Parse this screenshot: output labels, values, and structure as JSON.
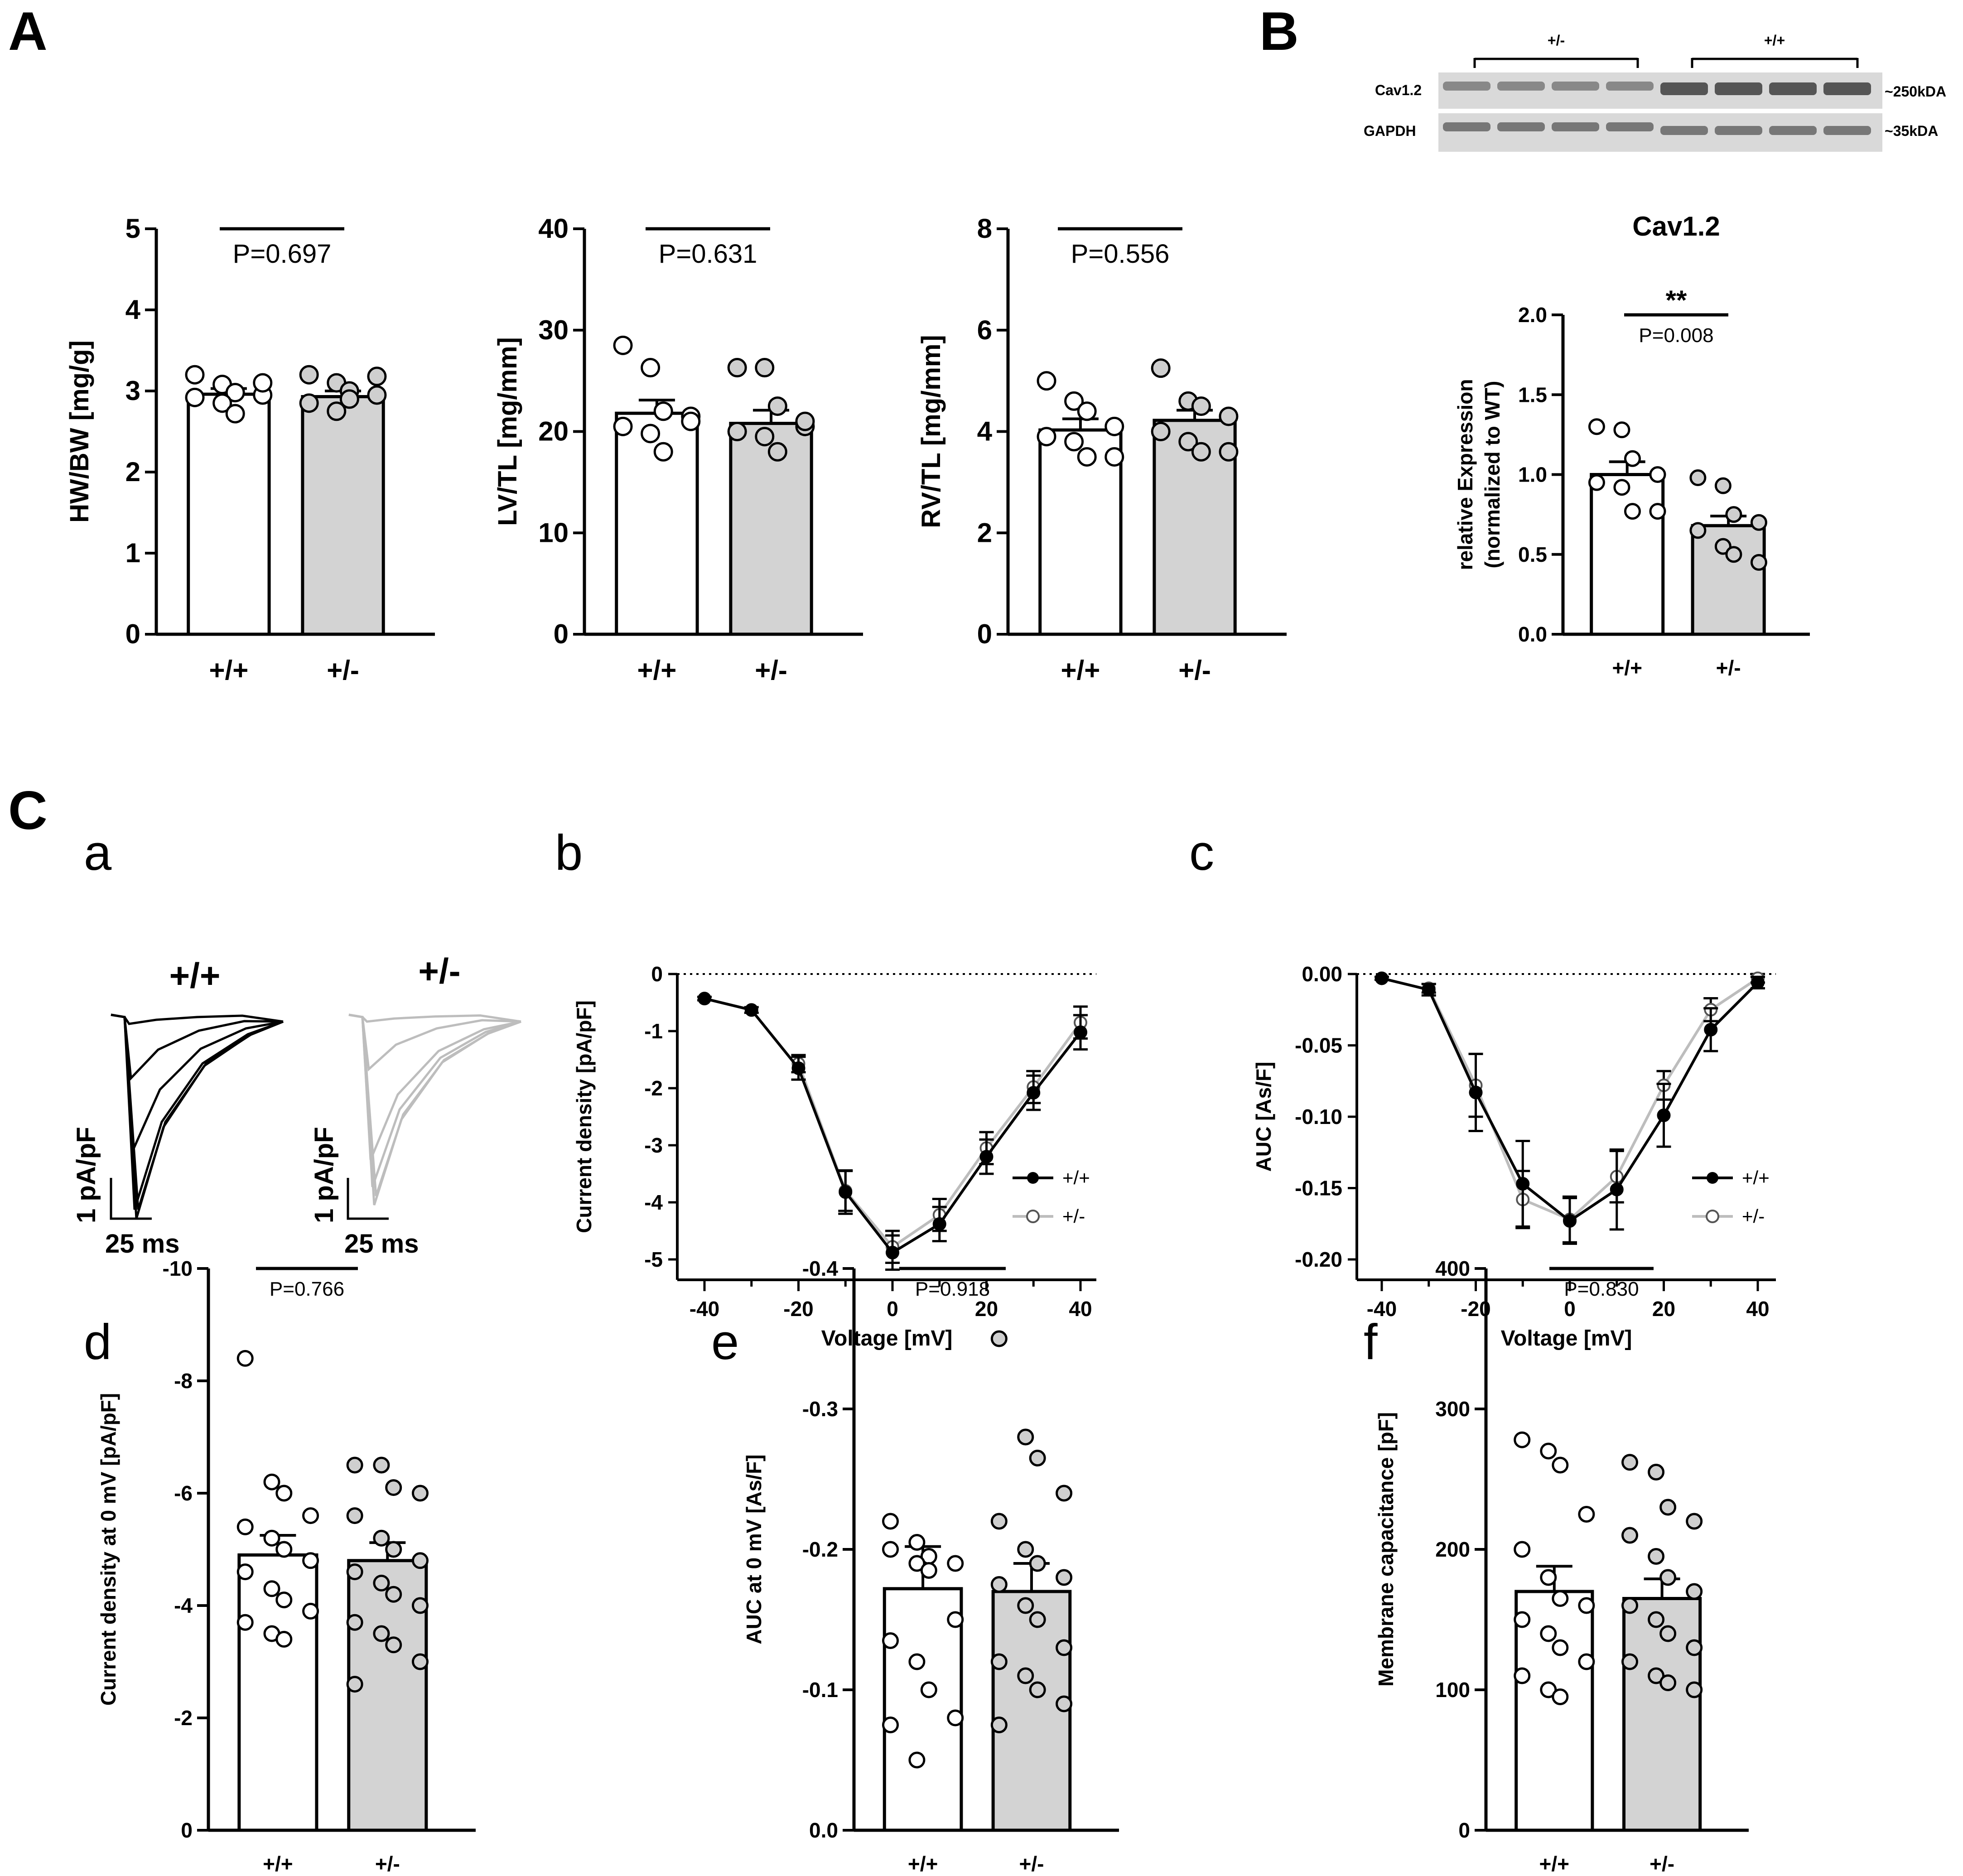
{
  "colors": {
    "wt": "#ffffff",
    "het": "#d3d3d3",
    "black": "#000000",
    "grey": "#bdbdbd"
  },
  "panels": {
    "A": "A",
    "B": "B",
    "C": "C",
    "a": "a",
    "b": "b",
    "c": "c",
    "d": "d",
    "e": "e",
    "f": "f"
  },
  "blot": {
    "groups": [
      "+/-",
      "+/+"
    ],
    "rows": [
      "Cav1.2",
      "GAPDH"
    ],
    "sizes": [
      "~250kDA",
      "~35kDA"
    ]
  },
  "traces": {
    "wt_label": "+/+",
    "het_label": "+/-",
    "scale_y": "1 pA/pF",
    "scale_x": "25 ms"
  },
  "chart_data": [
    {
      "id": "A1",
      "type": "bar",
      "title": "",
      "ylabel": "HW/BW [mg/g]",
      "ylim": [
        0,
        5
      ],
      "yticks": [
        "0",
        "1",
        "2",
        "3",
        "4",
        "5"
      ],
      "categories": [
        "+/+",
        "+/-"
      ],
      "means": [
        2.96,
        2.93
      ],
      "sem": [
        0.07,
        0.07
      ],
      "points": [
        [
          3.2,
          3.08,
          2.98,
          2.95,
          2.92,
          2.85,
          2.72,
          3.1
        ],
        [
          3.2,
          3.1,
          3.0,
          2.95,
          2.85,
          2.75,
          2.9,
          3.18
        ]
      ],
      "p_label": "P=0.697"
    },
    {
      "id": "A2",
      "type": "bar",
      "title": "",
      "ylabel": "LV/TL [mg/mm]",
      "ylim": [
        0,
        40
      ],
      "yticks": [
        "0",
        "10",
        "20",
        "30",
        "40"
      ],
      "categories": [
        "+/+",
        "+/-"
      ],
      "means": [
        21.8,
        20.8
      ],
      "sem": [
        1.3,
        1.3
      ],
      "points": [
        [
          28.5,
          26.3,
          22.0,
          21.5,
          20.5,
          19.8,
          18.0,
          21.0
        ],
        [
          26.3,
          26.3,
          22.5,
          20.5,
          20.0,
          19.5,
          18.0,
          21.0
        ]
      ],
      "p_label": "P=0.631"
    },
    {
      "id": "A3",
      "type": "bar",
      "title": "",
      "ylabel": "RV/TL [mg/mm]",
      "ylim": [
        0,
        8
      ],
      "yticks": [
        "0",
        "2",
        "4",
        "6",
        "8"
      ],
      "categories": [
        "+/+",
        "+/-"
      ],
      "means": [
        4.03,
        4.22
      ],
      "sem": [
        0.22,
        0.2
      ],
      "points": [
        [
          5.0,
          4.6,
          4.4,
          4.1,
          3.9,
          3.8,
          3.5,
          3.5
        ],
        [
          5.25,
          4.6,
          4.5,
          4.3,
          4.0,
          3.8,
          3.6,
          3.6
        ]
      ],
      "p_label": "P=0.556"
    },
    {
      "id": "B",
      "type": "bar",
      "title": "Cav1.2",
      "ylabel": [
        "relative Expression",
        "(normalized to WT)"
      ],
      "ylim": [
        0,
        2
      ],
      "yticks": [
        "0.0",
        "0.5",
        "1.0",
        "1.5",
        "2.0"
      ],
      "categories": [
        "+/+",
        "+/-"
      ],
      "means": [
        1.0,
        0.68
      ],
      "sem": [
        0.08,
        0.06
      ],
      "points": [
        [
          1.3,
          1.28,
          1.1,
          1.0,
          0.95,
          0.92,
          0.77,
          0.77
        ],
        [
          0.98,
          0.93,
          0.75,
          0.7,
          0.65,
          0.55,
          0.5,
          0.45
        ]
      ],
      "p_label": "P=0.008",
      "sig": "**"
    },
    {
      "id": "Cb",
      "type": "line",
      "title": "",
      "xlabel": "Voltage [mV]",
      "ylabel": "Current density [pA/pF]",
      "xlim": [
        -40,
        40
      ],
      "ylim": [
        -5,
        0
      ],
      "xticks": [
        "-40",
        "-20",
        "0",
        "20",
        "40"
      ],
      "yticks": [
        "0",
        "-1",
        "-2",
        "-3",
        "-4",
        "-5"
      ],
      "series": [
        {
          "name": "+/+",
          "x": [
            -40,
            -30,
            -20,
            -10,
            0,
            10,
            20,
            30,
            40
          ],
          "y": [
            -0.43,
            -0.63,
            -1.65,
            -3.82,
            -4.88,
            -4.38,
            -3.2,
            -2.08,
            -1.02
          ],
          "err": [
            0.03,
            0.05,
            0.2,
            0.38,
            0.3,
            0.3,
            0.3,
            0.3,
            0.3
          ]
        },
        {
          "name": "+/-",
          "x": [
            -20,
            -10,
            0,
            10,
            20,
            30,
            40
          ],
          "y": [
            -1.57,
            -3.8,
            -4.78,
            -4.22,
            -3.05,
            -1.98,
            -0.85
          ],
          "err": [
            0.15,
            0.35,
            0.28,
            0.28,
            0.28,
            0.28,
            0.28
          ]
        }
      ]
    },
    {
      "id": "Cc",
      "type": "line",
      "title": "",
      "xlabel": "Voltage [mV]",
      "ylabel": "AUC [As/F]",
      "xlim": [
        -40,
        40
      ],
      "ylim": [
        -0.2,
        0
      ],
      "xticks": [
        "-40",
        "-20",
        "0",
        "20",
        "40"
      ],
      "yticks": [
        "0.00",
        "-0.05",
        "-0.10",
        "-0.15",
        "-0.20"
      ],
      "series": [
        {
          "name": "+/+",
          "x": [
            -40,
            -30,
            -20,
            -10,
            0,
            10,
            20,
            30,
            40
          ],
          "y": [
            -0.003,
            -0.011,
            -0.083,
            -0.147,
            -0.173,
            -0.151,
            -0.099,
            -0.039,
            -0.006
          ],
          "err": [
            0.001,
            0.004,
            0.027,
            0.03,
            0.016,
            0.028,
            0.022,
            0.015,
            0.004
          ]
        },
        {
          "name": "+/-",
          "x": [
            -30,
            -20,
            -10,
            0,
            10,
            20,
            30,
            40
          ],
          "y": [
            -0.01,
            -0.078,
            -0.158,
            -0.172,
            -0.142,
            -0.078,
            -0.025,
            -0.003
          ],
          "err": [
            0.003,
            0.022,
            0.02,
            0.016,
            0.018,
            0.01,
            0.008,
            0.003
          ]
        }
      ]
    },
    {
      "id": "Cd",
      "type": "bar",
      "title": "",
      "ylabel": "Current density at 0 mV [pA/pF]",
      "ylim": [
        0,
        -10
      ],
      "yticks": [
        "0",
        "-2",
        "-4",
        "-6",
        "-8",
        "-10"
      ],
      "categories": [
        "+/+",
        "+/-"
      ],
      "means": [
        -4.9,
        -4.8
      ],
      "sem": [
        0.35,
        0.32
      ],
      "points": [
        [
          -8.4,
          -6.2,
          -6.0,
          -5.6,
          -5.4,
          -5.2,
          -5.0,
          -4.8,
          -4.6,
          -4.3,
          -4.1,
          -3.9,
          -3.7,
          -3.5,
          -3.4
        ],
        [
          -6.5,
          -6.5,
          -6.1,
          -6.0,
          -5.6,
          -5.2,
          -5.0,
          -4.8,
          -4.6,
          -4.4,
          -4.2,
          -4.0,
          -3.7,
          -3.5,
          -3.3,
          -3.0,
          -2.6
        ]
      ],
      "p_label": "P=0.766"
    },
    {
      "id": "Ce",
      "type": "bar",
      "title": "",
      "ylabel": "AUC at 0 mV [As/F]",
      "ylim": [
        0,
        -0.4
      ],
      "yticks": [
        "0.0",
        "-0.1",
        "-0.2",
        "-0.3",
        "-0.4"
      ],
      "categories": [
        "+/+",
        "+/-"
      ],
      "means": [
        -0.172,
        -0.17
      ],
      "sem": [
        0.03,
        0.02
      ],
      "points": [
        [
          -0.22,
          -0.205,
          -0.195,
          -0.19,
          -0.2,
          -0.19,
          -0.185,
          -0.15,
          -0.135,
          -0.12,
          -0.1,
          -0.08,
          -0.075,
          -0.05
        ],
        [
          -0.35,
          -0.28,
          -0.265,
          -0.24,
          -0.22,
          -0.2,
          -0.19,
          -0.18,
          -0.175,
          -0.16,
          -0.15,
          -0.13,
          -0.12,
          -0.11,
          -0.1,
          -0.09,
          -0.075
        ]
      ],
      "p_label": "P=0.918"
    },
    {
      "id": "Cf",
      "type": "bar",
      "title": "",
      "ylabel": "Membrane capacitance [pF]",
      "ylim": [
        0,
        400
      ],
      "yticks": [
        "0",
        "100",
        "200",
        "300",
        "400"
      ],
      "categories": [
        "+/+",
        "+/-"
      ],
      "means": [
        170,
        165
      ],
      "sem": [
        18,
        14
      ],
      "points": [
        [
          278,
          270,
          260,
          225,
          200,
          180,
          165,
          160,
          150,
          140,
          130,
          120,
          110,
          100,
          95
        ],
        [
          262,
          255,
          230,
          220,
          210,
          195,
          180,
          170,
          160,
          150,
          140,
          130,
          120,
          110,
          105,
          100
        ]
      ],
      "p_label": "P=0.830"
    }
  ]
}
